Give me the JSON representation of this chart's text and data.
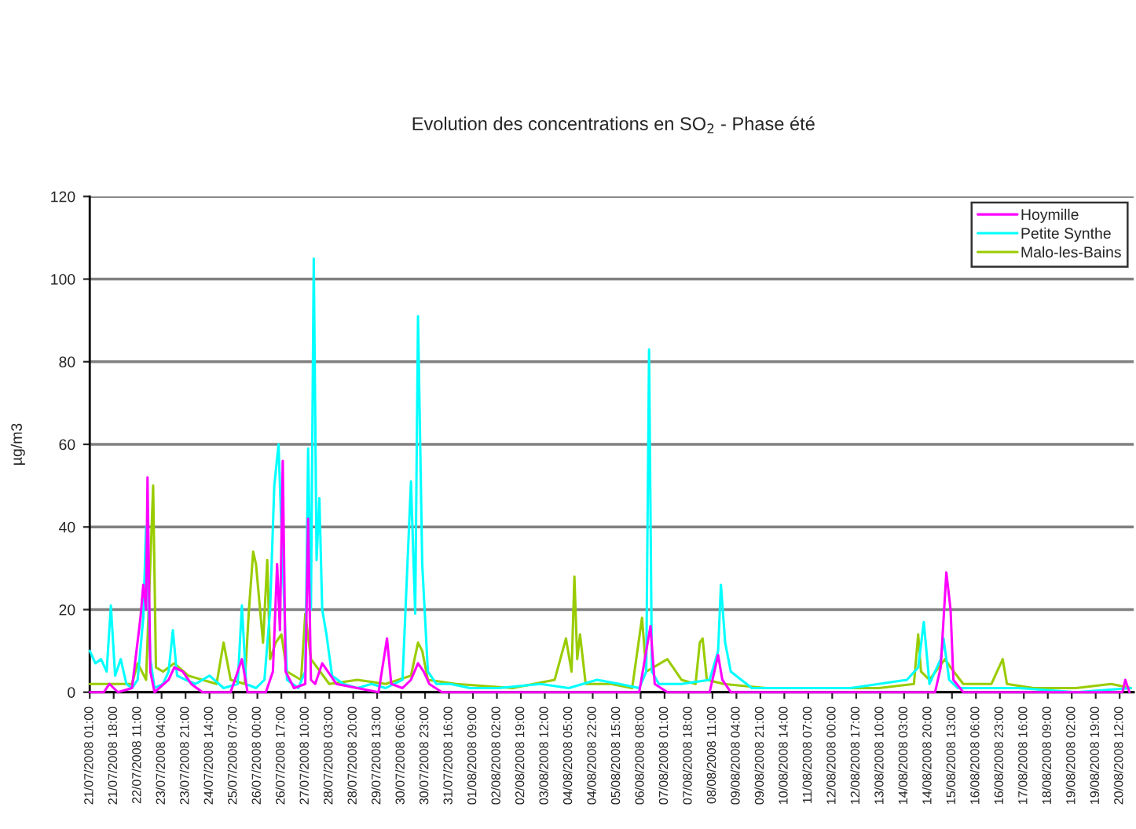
{
  "chart_data": {
    "type": "line",
    "title": "Evolution des concentrations en SO$_{2}$ - Phase été",
    "ylabel": "µg/m3",
    "xlim": [
      "2008-07-21T01:00",
      "2008-08-20T22:00"
    ],
    "ylim": [
      0,
      120
    ],
    "yticks": [
      0,
      20,
      40,
      60,
      80,
      100,
      120
    ],
    "grid": "y",
    "legend": "top right",
    "marker": "none",
    "line_style": "solid",
    "xticks": [
      {
        "value": "2008-07-21T01:00",
        "label": "21/07/2008 01:00"
      },
      {
        "value": "2008-07-21T18:00",
        "label": "21/07/2008 18:00"
      },
      {
        "value": "2008-07-22T11:00",
        "label": "22/07/2008 11:00"
      },
      {
        "value": "2008-07-23T04:00",
        "label": "23/07/2008 04:00"
      },
      {
        "value": "2008-07-23T21:00",
        "label": "23/07/2008 21:00"
      },
      {
        "value": "2008-07-24T14:00",
        "label": "24/07/2008 14:00"
      },
      {
        "value": "2008-07-25T07:00",
        "label": "25/07/2008 07:00"
      },
      {
        "value": "2008-07-26T00:00",
        "label": "26/07/2008 00:00"
      },
      {
        "value": "2008-07-26T17:00",
        "label": "26/07/2008 17:00"
      },
      {
        "value": "2008-07-27T10:00",
        "label": "27/07/2008 10:00"
      },
      {
        "value": "2008-07-28T03:00",
        "label": "28/07/2008 03:00"
      },
      {
        "value": "2008-07-28T20:00",
        "label": "28/07/2008 20:00"
      },
      {
        "value": "2008-07-29T13:00",
        "label": "29/07/2008 13:00"
      },
      {
        "value": "2008-07-30T06:00",
        "label": "30/07/2008 06:00"
      },
      {
        "value": "2008-07-30T23:00",
        "label": "30/07/2008 23:00"
      },
      {
        "value": "2008-07-31T16:00",
        "label": "31/07/2008 16:00"
      },
      {
        "value": "2008-08-01T09:00",
        "label": "01/08/2008 09:00"
      },
      {
        "value": "2008-08-02T02:00",
        "label": "02/08/2008 02:00"
      },
      {
        "value": "2008-08-02T19:00",
        "label": "02/08/2008 19:00"
      },
      {
        "value": "2008-08-03T12:00",
        "label": "03/08/2008 12:00"
      },
      {
        "value": "2008-08-04T05:00",
        "label": "04/08/2008 05:00"
      },
      {
        "value": "2008-08-04T22:00",
        "label": "04/08/2008 22:00"
      },
      {
        "value": "2008-08-05T15:00",
        "label": "05/08/2008 15:00"
      },
      {
        "value": "2008-08-06T08:00",
        "label": "06/08/2008 08:00"
      },
      {
        "value": "2008-08-07T01:00",
        "label": "07/08/2008 01:00"
      },
      {
        "value": "2008-08-07T18:00",
        "label": "07/08/2008 18:00"
      },
      {
        "value": "2008-08-08T11:00",
        "label": "08/08/2008 11:00"
      },
      {
        "value": "2008-08-09T04:00",
        "label": "09/08/2008 04:00"
      },
      {
        "value": "2008-08-09T21:00",
        "label": "09/08/2008 21:00"
      },
      {
        "value": "2008-08-10T14:00",
        "label": "10/08/2008 14:00"
      },
      {
        "value": "2008-08-11T07:00",
        "label": "11/08/2008 07:00"
      },
      {
        "value": "2008-08-12T00:00",
        "label": "12/08/2008 00:00"
      },
      {
        "value": "2008-08-12T17:00",
        "label": "12/08/2008 17:00"
      },
      {
        "value": "2008-08-13T10:00",
        "label": "13/08/2008 10:00"
      },
      {
        "value": "2008-08-14T03:00",
        "label": "14/08/2008 03:00"
      },
      {
        "value": "2008-08-14T20:00",
        "label": "14/08/2008 20:00"
      },
      {
        "value": "2008-08-15T13:00",
        "label": "15/08/2008 13:00"
      },
      {
        "value": "2008-08-16T06:00",
        "label": "16/08/2008 06:00"
      },
      {
        "value": "2008-08-16T23:00",
        "label": "16/08/2008 23:00"
      },
      {
        "value": "2008-08-17T16:00",
        "label": "17/08/2008 16:00"
      },
      {
        "value": "2008-08-18T09:00",
        "label": "18/08/2008 09:00"
      },
      {
        "value": "2008-08-19T02:00",
        "label": "19/08/2008 02:00"
      },
      {
        "value": "2008-08-19T19:00",
        "label": "19/08/2008 19:00"
      },
      {
        "value": "2008-08-20T12:00",
        "label": "20/08/2008 12:00"
      }
    ],
    "series": [
      {
        "name": "Hoymille",
        "color": "#ff00ff",
        "x": [
          "2008-07-21T01:00",
          "2008-07-21T11:00",
          "2008-07-21T15:00",
          "2008-07-21T21:00",
          "2008-07-22T07:00",
          "2008-07-22T13:00",
          "2008-07-22T15:00",
          "2008-07-22T17:00",
          "2008-07-22T18:00",
          "2008-07-22T20:00",
          "2008-07-22T23:00",
          "2008-07-23T09:00",
          "2008-07-23T13:00",
          "2008-07-23T19:00",
          "2008-07-24T01:00",
          "2008-07-24T09:00",
          "2008-07-25T05:00",
          "2008-07-25T13:00",
          "2008-07-25T17:00",
          "2008-07-26T06:00",
          "2008-07-26T11:00",
          "2008-07-26T14:00",
          "2008-07-26T16:00",
          "2008-07-26T18:00",
          "2008-07-26T20:00",
          "2008-07-27T02:00",
          "2008-07-27T10:00",
          "2008-07-27T12:00",
          "2008-07-27T14:00",
          "2008-07-27T17:00",
          "2008-07-27T22:00",
          "2008-07-28T08:00",
          "2008-07-28T23:00",
          "2008-07-29T14:00",
          "2008-07-29T20:00",
          "2008-07-29T23:00",
          "2008-07-30T07:00",
          "2008-07-30T13:00",
          "2008-07-30T18:00",
          "2008-07-30T22:00",
          "2008-07-31T02:00",
          "2008-07-31T11:00",
          "2008-08-02T13:00",
          "2008-08-04T10:00",
          "2008-08-06T07:00",
          "2008-08-06T15:00",
          "2008-08-06T18:00",
          "2008-08-07T03:00",
          "2008-08-08T09:00",
          "2008-08-08T15:00",
          "2008-08-08T18:00",
          "2008-08-09T00:00",
          "2008-08-10T21:00",
          "2008-08-13T09:00",
          "2008-08-15T01:00",
          "2008-08-15T05:00",
          "2008-08-15T09:00",
          "2008-08-15T12:00",
          "2008-08-15T14:00",
          "2008-08-15T21:00",
          "2008-08-19T05:00",
          "2008-08-20T14:00",
          "2008-08-20T16:00",
          "2008-08-20T19:00"
        ],
        "values": [
          0,
          0,
          2,
          0,
          1,
          18,
          26,
          20,
          52,
          5,
          0,
          3,
          6,
          5,
          2,
          0,
          0,
          8,
          0,
          0,
          5,
          31,
          15,
          56,
          5,
          1,
          2,
          42,
          3,
          2,
          7,
          2,
          1,
          0,
          13,
          2,
          1,
          3,
          7,
          5,
          2,
          0,
          0,
          0,
          0,
          16,
          2,
          0,
          0,
          9,
          3,
          0,
          0,
          0,
          0,
          6,
          29,
          20,
          3,
          0,
          0,
          0,
          3,
          0
        ]
      },
      {
        "name": "Petite Synthe",
        "color": "#00ffff",
        "x": [
          "2008-07-21T01:00",
          "2008-07-21T05:00",
          "2008-07-21T09:00",
          "2008-07-21T13:00",
          "2008-07-21T16:00",
          "2008-07-21T19:00",
          "2008-07-21T23:00",
          "2008-07-22T03:00",
          "2008-07-22T07:00",
          "2008-07-22T11:00",
          "2008-07-22T15:00",
          "2008-07-22T17:00",
          "2008-07-22T20:00",
          "2008-07-22T23:00",
          "2008-07-23T05:00",
          "2008-07-23T09:00",
          "2008-07-23T12:00",
          "2008-07-23T15:00",
          "2008-07-23T21:00",
          "2008-07-24T04:00",
          "2008-07-24T14:00",
          "2008-07-25T00:00",
          "2008-07-25T10:00",
          "2008-07-25T13:00",
          "2008-07-25T16:00",
          "2008-07-25T23:00",
          "2008-07-26T05:00",
          "2008-07-26T09:00",
          "2008-07-26T12:00",
          "2008-07-26T15:00",
          "2008-07-26T17:00",
          "2008-07-26T21:00",
          "2008-07-27T05:00",
          "2008-07-27T10:00",
          "2008-07-27T12:00",
          "2008-07-27T14:00",
          "2008-07-27T16:00",
          "2008-07-27T18:00",
          "2008-07-27T20:00",
          "2008-07-27T22:00",
          "2008-07-28T01:00",
          "2008-07-28T05:00",
          "2008-07-28T13:00",
          "2008-07-28T23:00",
          "2008-07-29T09:00",
          "2008-07-29T19:00",
          "2008-07-30T07:00",
          "2008-07-30T13:00",
          "2008-07-30T16:00",
          "2008-07-30T18:00",
          "2008-07-30T21:00",
          "2008-07-31T01:00",
          "2008-07-31T07:00",
          "2008-07-31T17:00",
          "2008-08-01T07:00",
          "2008-08-02T03:00",
          "2008-08-03T09:00",
          "2008-08-04T05:00",
          "2008-08-05T01:00",
          "2008-08-05T17:00",
          "2008-08-06T07:00",
          "2008-08-06T12:00",
          "2008-08-06T14:00",
          "2008-08-06T16:00",
          "2008-08-06T21:00",
          "2008-08-07T13:00",
          "2008-08-08T09:00",
          "2008-08-08T15:00",
          "2008-08-08T17:00",
          "2008-08-08T20:00",
          "2008-08-09T00:00",
          "2008-08-09T15:00",
          "2008-08-10T21:00",
          "2008-08-12T13:00",
          "2008-08-14T05:00",
          "2008-08-14T13:00",
          "2008-08-14T17:00",
          "2008-08-14T21:00",
          "2008-08-15T05:00",
          "2008-08-15T07:00",
          "2008-08-15T11:00",
          "2008-08-15T17:00",
          "2008-08-17T13:00",
          "2008-08-19T05:00",
          "2008-08-20T20:00"
        ],
        "values": [
          10,
          7,
          8,
          5,
          21,
          4,
          8,
          2,
          1,
          3,
          18,
          40,
          8,
          1,
          2,
          5,
          15,
          4,
          3,
          2,
          4,
          1,
          2,
          21,
          2,
          1,
          3,
          20,
          50,
          60,
          40,
          3,
          1,
          5,
          59,
          20,
          105,
          32,
          47,
          20,
          14,
          4,
          2,
          1,
          2,
          1,
          3,
          51,
          19,
          91,
          31,
          5,
          2,
          2,
          1,
          1,
          2,
          1,
          3,
          2,
          1,
          5,
          83,
          5,
          2,
          2,
          3,
          10,
          26,
          12,
          5,
          1,
          1,
          1,
          3,
          6,
          17,
          2,
          8,
          13,
          3,
          1,
          1,
          0,
          1
        ]
      },
      {
        "name": "Malo-les-Bains",
        "color": "#99cc00",
        "x": [
          "2008-07-21T01:00",
          "2008-07-22T07:00",
          "2008-07-22T11:00",
          "2008-07-22T17:00",
          "2008-07-22T22:00",
          "2008-07-23T00:00",
          "2008-07-23T05:00",
          "2008-07-23T13:00",
          "2008-07-23T23:00",
          "2008-07-24T09:00",
          "2008-07-24T19:00",
          "2008-07-25T00:00",
          "2008-07-25T05:00",
          "2008-07-25T15:00",
          "2008-07-25T18:00",
          "2008-07-25T21:00",
          "2008-07-25T23:00",
          "2008-07-26T04:00",
          "2008-07-26T07:00",
          "2008-07-26T09:00",
          "2008-07-26T13:00",
          "2008-07-26T17:00",
          "2008-07-26T21:00",
          "2008-07-27T07:00",
          "2008-07-27T10:00",
          "2008-07-27T14:00",
          "2008-07-28T03:00",
          "2008-07-28T23:00",
          "2008-07-29T19:00",
          "2008-07-30T13:00",
          "2008-07-30T18:00",
          "2008-07-30T21:00",
          "2008-07-31T01:00",
          "2008-07-31T21:00",
          "2008-08-02T13:00",
          "2008-08-03T19:00",
          "2008-08-04T03:00",
          "2008-08-04T07:00",
          "2008-08-04T09:00",
          "2008-08-04T11:00",
          "2008-08-04T13:00",
          "2008-08-04T17:00",
          "2008-08-05T11:00",
          "2008-08-06T02:00",
          "2008-08-06T09:00",
          "2008-08-06T12:00",
          "2008-08-07T03:00",
          "2008-08-07T13:00",
          "2008-08-07T23:00",
          "2008-08-08T02:00",
          "2008-08-08T04:00",
          "2008-08-08T07:00",
          "2008-08-08T19:00",
          "2008-08-10T01:00",
          "2008-08-11T17:00",
          "2008-08-13T09:00",
          "2008-08-14T10:00",
          "2008-08-14T13:00",
          "2008-08-14T15:00",
          "2008-08-14T21:00",
          "2008-08-15T08:00",
          "2008-08-15T12:00",
          "2008-08-15T21:00",
          "2008-08-16T17:00",
          "2008-08-17T01:00",
          "2008-08-17T04:00",
          "2008-08-17T23:00",
          "2008-08-19T05:00",
          "2008-08-20T06:00",
          "2008-08-20T20:00"
        ],
        "values": [
          2,
          2,
          7,
          3,
          50,
          6,
          5,
          7,
          4,
          3,
          2,
          12,
          3,
          2,
          20,
          34,
          31,
          12,
          32,
          8,
          12,
          14,
          5,
          3,
          19,
          8,
          2,
          3,
          2,
          4,
          12,
          10,
          3,
          2,
          1,
          3,
          13,
          5,
          28,
          8,
          14,
          2,
          2,
          1,
          18,
          5,
          8,
          3,
          2,
          12,
          13,
          3,
          2,
          1,
          1,
          1,
          2,
          14,
          5,
          3,
          8,
          6,
          2,
          2,
          8,
          2,
          1,
          1,
          2,
          1
        ]
      }
    ]
  }
}
